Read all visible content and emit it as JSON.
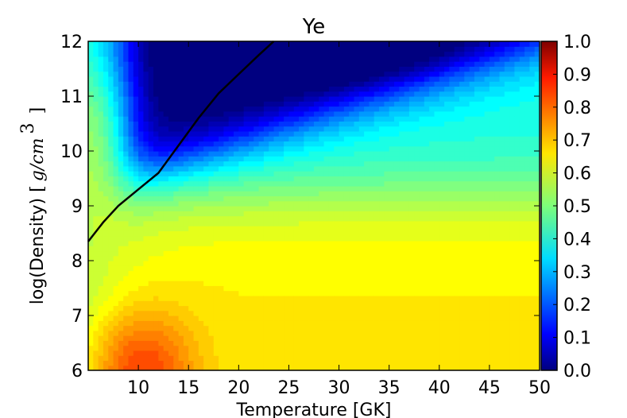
{
  "chart_data": {
    "type": "heatmap",
    "title": "Ye",
    "xlabel": "Temperature [GK]",
    "ylabel_prefix": "log(Density) ",
    "ylabel_unit_open": "[",
    "ylabel_unit_var": "g/cm",
    "ylabel_unit_exp": "3",
    "ylabel_unit_close": "]",
    "xlim": [
      5,
      50
    ],
    "ylim": [
      6,
      12
    ],
    "x_ticks": [
      10,
      15,
      20,
      25,
      30,
      35,
      40,
      45,
      50
    ],
    "x_tick_labels": [
      "10",
      "15",
      "20",
      "25",
      "30",
      "35",
      "40",
      "45",
      "50"
    ],
    "y_ticks": [
      6,
      7,
      8,
      9,
      10,
      11,
      12
    ],
    "y_tick_labels": [
      "6",
      "7",
      "8",
      "9",
      "10",
      "11",
      "12"
    ],
    "colorbar": {
      "range": [
        0,
        1
      ],
      "ticks": [
        0.0,
        0.1,
        0.2,
        0.3,
        0.4,
        0.5,
        0.6,
        0.7,
        0.8,
        0.9,
        1.0
      ],
      "tick_labels": [
        "0.0",
        "0.1",
        "0.2",
        "0.3",
        "0.4",
        "0.5",
        "0.6",
        "0.7",
        "0.8",
        "0.9",
        "1.0"
      ],
      "colormap": "jet"
    },
    "contour_line": {
      "points": [
        [
          5.0,
          8.35
        ],
        [
          6.5,
          8.7
        ],
        [
          8.0,
          9.0
        ],
        [
          10.0,
          9.3
        ],
        [
          12.0,
          9.6
        ],
        [
          14.0,
          10.1
        ],
        [
          16.0,
          10.6
        ],
        [
          18.0,
          11.05
        ],
        [
          20.0,
          11.4
        ],
        [
          22.0,
          11.75
        ],
        [
          23.5,
          12.0
        ]
      ],
      "color": "#000000"
    },
    "field_samples": [
      {
        "x": 10,
        "y": 6.2,
        "value": 0.8
      },
      {
        "x": 15,
        "y": 7.0,
        "value": 0.7
      },
      {
        "x": 40,
        "y": 7.0,
        "value": 0.62
      },
      {
        "x": 35,
        "y": 8.5,
        "value": 0.55
      },
      {
        "x": 5,
        "y": 8.0,
        "value": 0.5
      },
      {
        "x": 8,
        "y": 10.0,
        "value": 0.4
      },
      {
        "x": 35,
        "y": 11.0,
        "value": 0.05
      },
      {
        "x": 15,
        "y": 11.8,
        "value": 0.15
      }
    ]
  }
}
